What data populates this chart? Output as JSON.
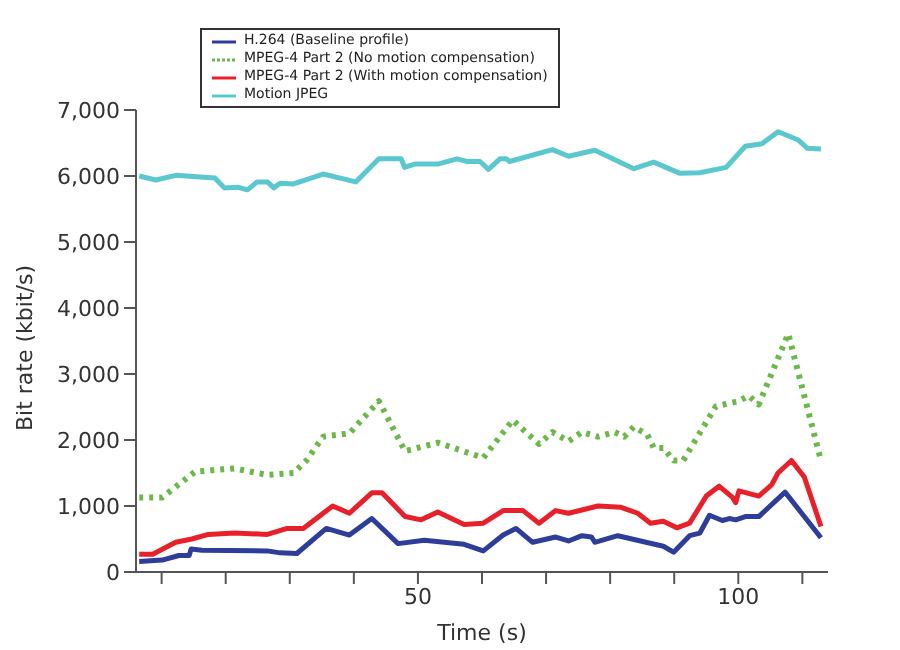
{
  "chart_data": {
    "type": "line",
    "xlabel": "Time (s)",
    "ylabel": "Bit rate (kbit/s)",
    "xlim": [
      6,
      114
    ],
    "ylim": [
      0,
      7000
    ],
    "xticks": [
      {
        "value": 10,
        "label": null
      },
      {
        "value": 20,
        "label": null
      },
      {
        "value": 30,
        "label": null
      },
      {
        "value": 40,
        "label": null
      },
      50,
      {
        "value": 60,
        "label": null
      },
      {
        "value": 70,
        "label": null
      },
      {
        "value": 80,
        "label": null
      },
      {
        "value": 90,
        "label": null
      },
      100,
      {
        "value": 110,
        "label": null
      }
    ],
    "yticks": [
      {
        "value": 0,
        "label": "0"
      },
      {
        "value": 1000,
        "label": "1,000"
      },
      {
        "value": 2000,
        "label": "2,000"
      },
      {
        "value": 3000,
        "label": "3,000"
      },
      {
        "value": 4000,
        "label": "4,000"
      },
      {
        "value": 5000,
        "label": "5,000"
      },
      {
        "value": 6000,
        "label": "6,000"
      },
      {
        "value": 7000,
        "label": "7,000"
      }
    ],
    "grid": false,
    "legend": "top left",
    "marker": "none",
    "series": [
      {
        "name": "H.264 (Baseline profile)",
        "color": "#2e3d9a",
        "line_style": "solid",
        "x": [
          6.5,
          10.1,
          12.7,
          14.3,
          14.6,
          16.3,
          26.5,
          28.5,
          31.1,
          35.7,
          39.3,
          42.8,
          46.9,
          51.0,
          57.2,
          60.2,
          63.3,
          65.3,
          67.9,
          71.5,
          73.5,
          75.6,
          77.1,
          77.6,
          81.2,
          88.3,
          89.9,
          92.4,
          94.0,
          95.5,
          97.5,
          98.6,
          99.6,
          101.1,
          103.2,
          107.3,
          112.9
        ],
        "values": [
          160,
          180,
          250,
          250,
          350,
          330,
          320,
          290,
          280,
          660,
          560,
          810,
          430,
          480,
          420,
          320,
          560,
          660,
          450,
          530,
          470,
          550,
          530,
          450,
          550,
          390,
          300,
          550,
          590,
          860,
          780,
          810,
          790,
          840,
          840,
          1210,
          520
        ]
      },
      {
        "name": "MPEG-4 Part 2 (No motion compensation)",
        "color": "#6cb84a",
        "line_style": "dotted",
        "x": [
          6.5,
          10.1,
          15.2,
          21.4,
          26.5,
          30.6,
          32.6,
          35.2,
          39.3,
          43.9,
          48.0,
          53.1,
          60.2,
          64.8,
          68.9,
          71.0,
          73.5,
          75.6,
          78.1,
          80.7,
          82.2,
          83.7,
          85.8,
          86.8,
          88.3,
          89.9,
          91.4,
          96.5,
          100.1,
          101.6,
          103.2,
          107.8,
          112.9
        ],
        "values": [
          1130,
          1130,
          1520,
          1570,
          1470,
          1500,
          1690,
          2050,
          2100,
          2590,
          1830,
          1960,
          1730,
          2300,
          1940,
          2120,
          1980,
          2120,
          2050,
          2120,
          2050,
          2200,
          2080,
          1880,
          1880,
          1690,
          1690,
          2510,
          2590,
          2670,
          2540,
          3610,
          1690
        ]
      },
      {
        "name": "MPEG-4 Part 2 (With motion compensation)",
        "color": "#e8202a",
        "line_style": "solid",
        "x": [
          6.5,
          8.6,
          12.2,
          14.7,
          17.3,
          21.4,
          26.5,
          29.6,
          32.1,
          36.7,
          39.3,
          42.8,
          44.4,
          48.0,
          50.5,
          53.1,
          57.2,
          60.2,
          63.3,
          66.4,
          68.9,
          71.5,
          73.5,
          78.1,
          81.7,
          84.3,
          86.3,
          88.3,
          90.4,
          92.4,
          95.0,
          97.0,
          99.1,
          99.6,
          100.1,
          103.2,
          105.2,
          106.2,
          108.3,
          110.3,
          112.9
        ],
        "values": [
          270,
          270,
          450,
          500,
          570,
          590,
          570,
          660,
          660,
          1000,
          890,
          1200,
          1200,
          840,
          790,
          910,
          720,
          740,
          930,
          930,
          740,
          930,
          890,
          1000,
          980,
          890,
          740,
          770,
          670,
          740,
          1150,
          1300,
          1130,
          1050,
          1230,
          1150,
          1320,
          1500,
          1690,
          1440,
          690
        ]
      },
      {
        "name": "Motion JPEG",
        "color": "#5bc8d0",
        "line_style": "solid",
        "x": [
          6.5,
          9.1,
          12.2,
          18.3,
          19.8,
          21.9,
          23.4,
          24.9,
          26.5,
          27.5,
          28.5,
          30.6,
          35.2,
          40.3,
          43.9,
          47.4,
          47.9,
          49.5,
          53.1,
          56.1,
          57.7,
          59.7,
          61.0,
          62.8,
          63.8,
          64.3,
          71.0,
          73.5,
          77.6,
          83.7,
          86.8,
          90.9,
          94.0,
          98.1,
          101.1,
          103.7,
          106.2,
          109.3,
          110.8,
          112.9
        ],
        "values": [
          6000,
          5940,
          6010,
          5970,
          5820,
          5830,
          5790,
          5910,
          5910,
          5820,
          5890,
          5880,
          6030,
          5910,
          6260,
          6260,
          6130,
          6180,
          6180,
          6260,
          6220,
          6220,
          6100,
          6260,
          6260,
          6220,
          6400,
          6300,
          6390,
          6110,
          6210,
          6040,
          6050,
          6130,
          6450,
          6490,
          6670,
          6550,
          6420,
          6410
        ]
      }
    ]
  }
}
